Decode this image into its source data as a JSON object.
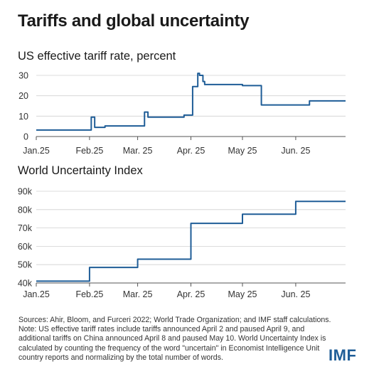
{
  "title": "Tariffs and global uncertainty",
  "line_color": "#1f5d97",
  "chart_data": [
    {
      "type": "line",
      "title": "US effective tariff rate, percent",
      "xlabel": "",
      "ylabel": "",
      "x_ticks": [
        "Jan.25",
        "Feb.25",
        "Mar. 25",
        "Apr. 25",
        "May 25",
        "Jun. 25"
      ],
      "y_ticks": [
        "0",
        "10",
        "20",
        "30"
      ],
      "ylim": [
        0,
        30
      ],
      "grid": true,
      "series": [
        {
          "x": [
            "2025-01-01",
            "2025-02-01",
            "2025-02-02",
            "2025-02-03",
            "2025-02-04",
            "2025-02-10",
            "2025-03-04",
            "2025-03-05",
            "2025-03-06",
            "2025-03-07",
            "2025-03-28",
            "2025-04-02",
            "2025-04-04",
            "2025-04-05",
            "2025-04-06",
            "2025-04-07",
            "2025-04-08",
            "2025-04-09",
            "2025-05-01",
            "2025-05-12",
            "2025-06-09",
            "2025-06-30"
          ],
          "y": [
            3.2,
            3.2,
            9.5,
            9.5,
            4.5,
            5.2,
            5.2,
            12,
            12,
            9.5,
            10.5,
            24.5,
            24.5,
            31,
            30,
            30,
            27,
            25.5,
            25,
            15.5,
            17.5,
            17.5
          ]
        }
      ]
    },
    {
      "type": "line",
      "title": "World Uncertainty Index",
      "xlabel": "",
      "ylabel": "",
      "x_ticks": [
        "Jan.25",
        "Feb.25",
        "Mar. 25",
        "Apr. 25",
        "May 25",
        "Jun. 25"
      ],
      "y_ticks": [
        "40k",
        "50k",
        "60k",
        "70k",
        "80k",
        "90k"
      ],
      "ylim": [
        40000,
        90000
      ],
      "grid": true,
      "series": [
        {
          "x": [
            "2025-01-01",
            "2025-02-01",
            "2025-03-01",
            "2025-04-01",
            "2025-05-01",
            "2025-06-01",
            "2025-06-30"
          ],
          "y": [
            41000,
            48500,
            53000,
            72500,
            77500,
            84500,
            84500
          ]
        }
      ]
    }
  ],
  "source_lines": [
    "Sources: Ahir, Bloom, and Furceri 2022; World Trade Organization; and IMF staff calculations.",
    "Note: US effective tariff rates include tariffs announced April 2 and paused April 9, and",
    "additional tariffs on China announced April 8 and paused May 10. World Uncertainty Index is",
    "calculated by counting the frequency of the word \"uncertain\" in Economist Intelligence Unit",
    "country reports and normalizing by the total number of words."
  ],
  "logo_text": "IMF"
}
